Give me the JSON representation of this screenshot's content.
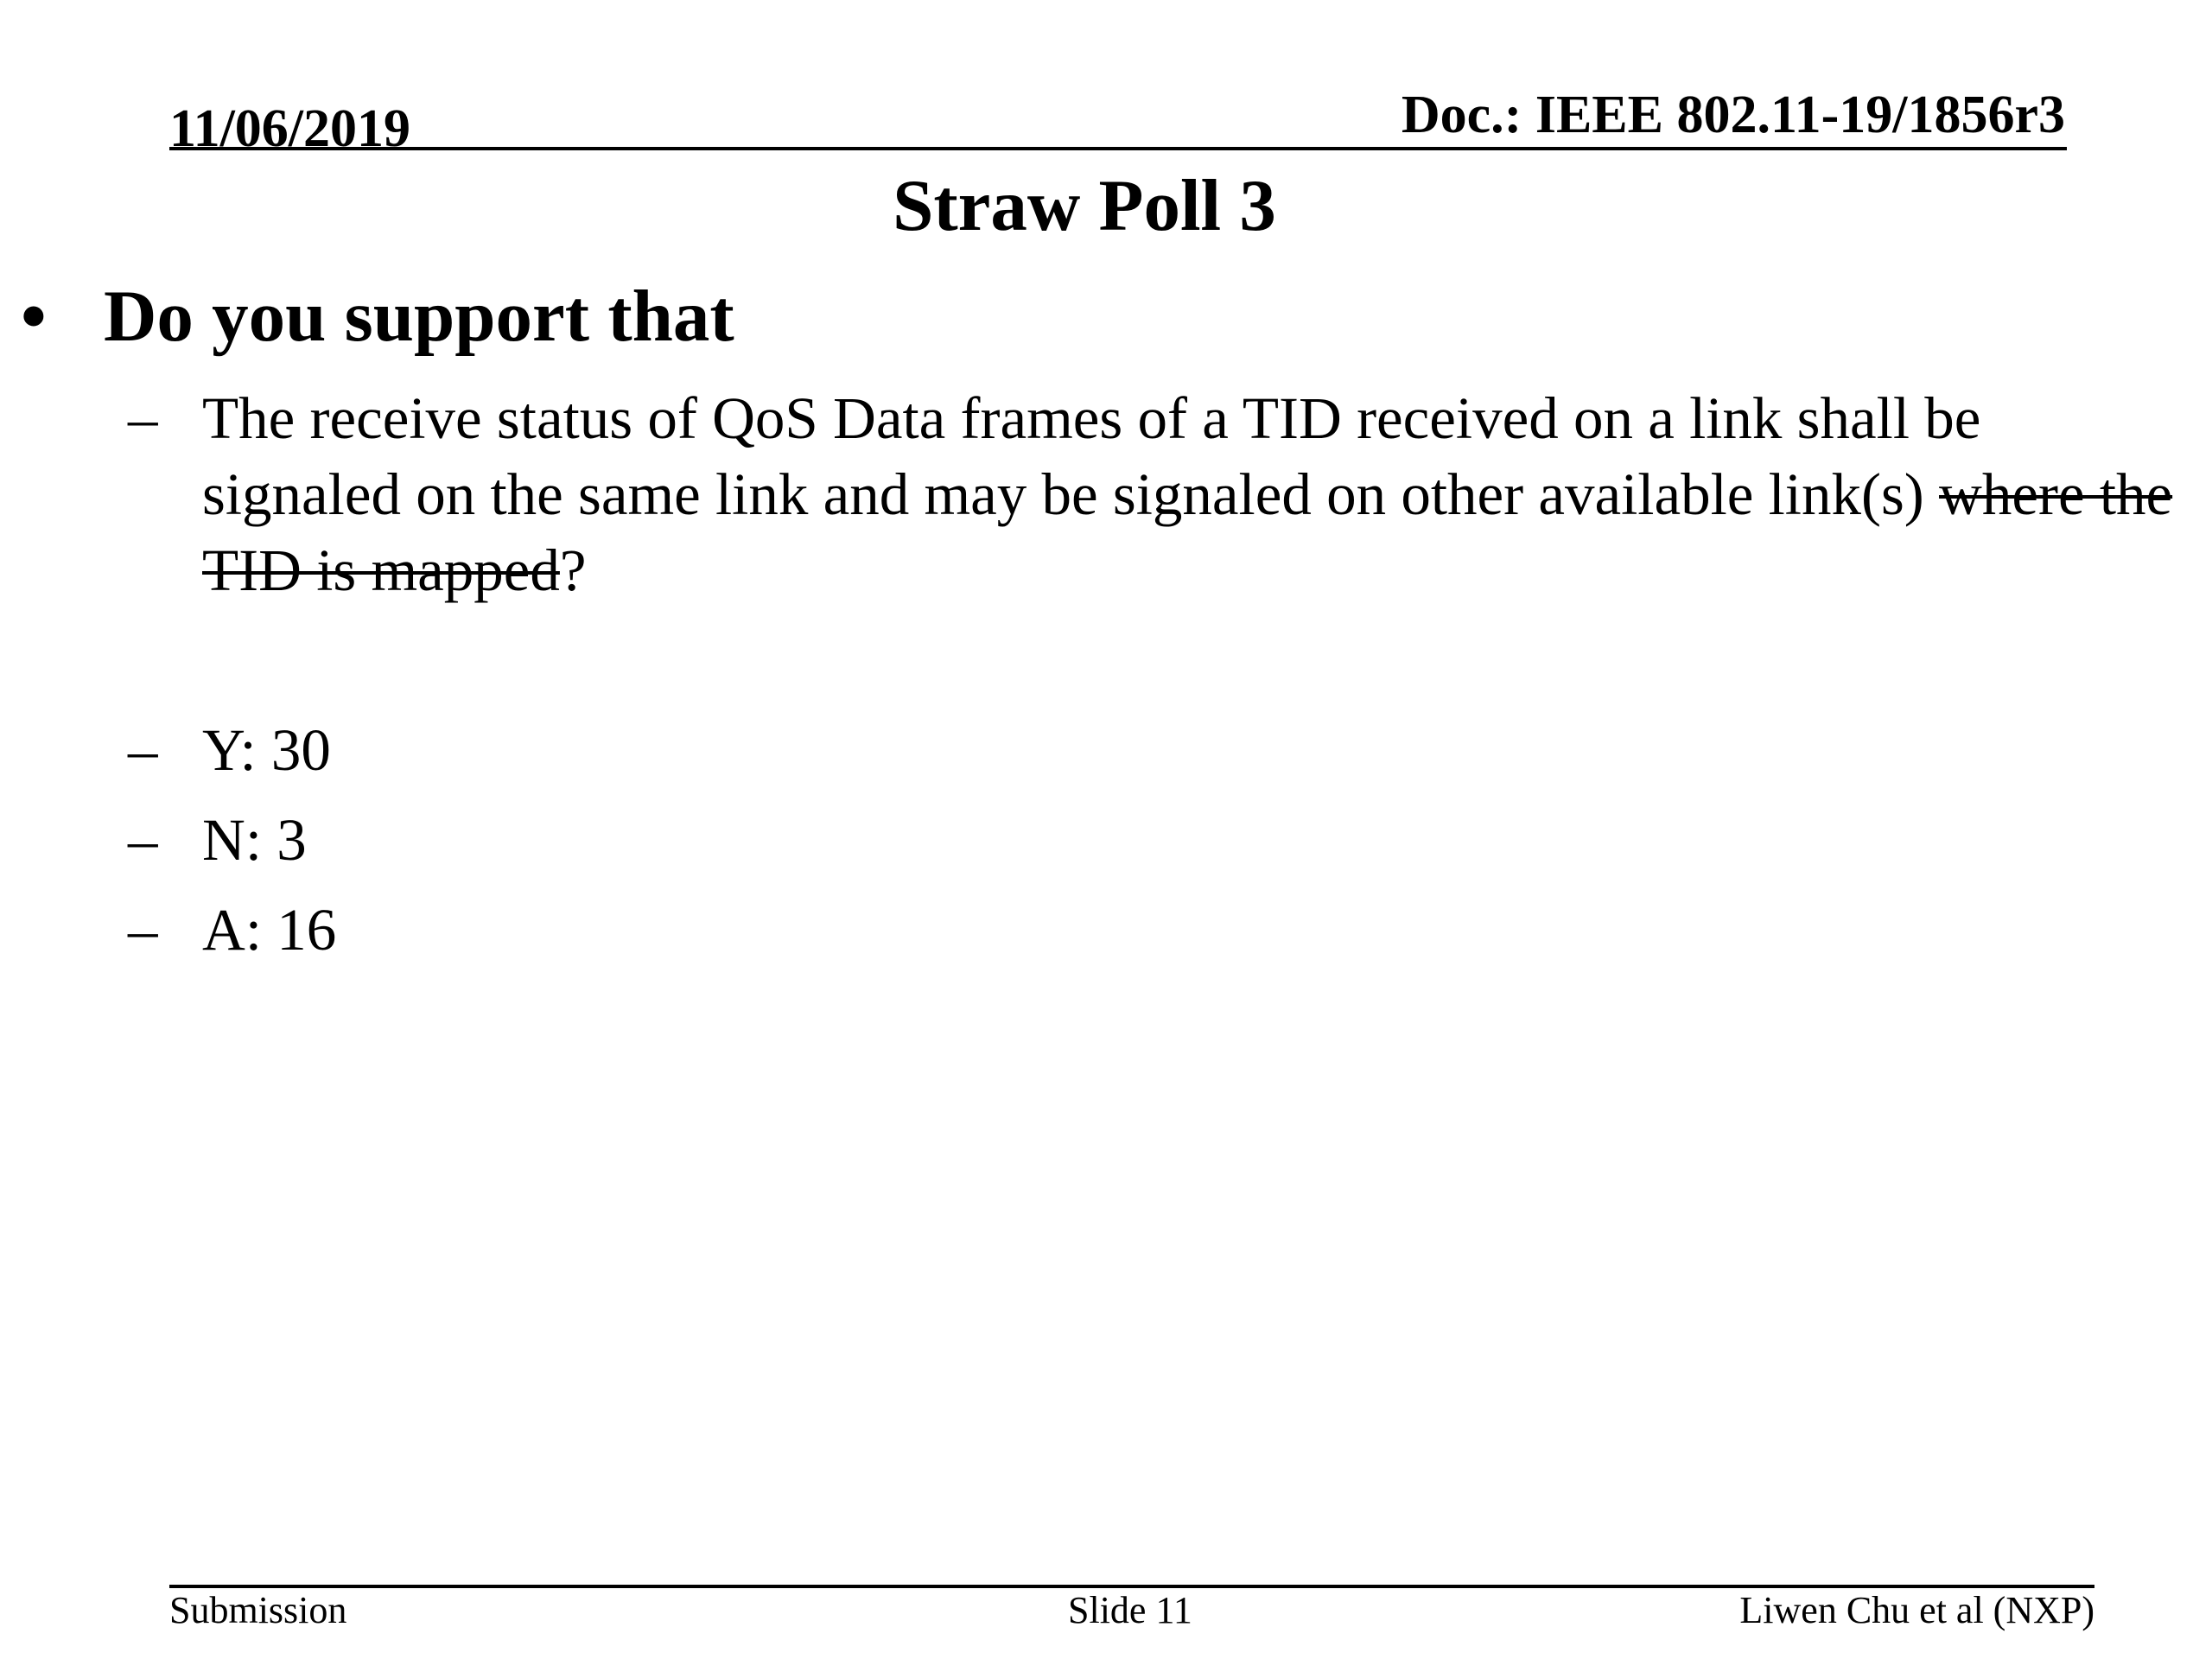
{
  "header": {
    "date": "11/06/2019",
    "doc_id": "Doc.: IEEE 802.11-19/1856r3"
  },
  "slide": {
    "title": "Straw Poll 3",
    "bullet": "Do you support that",
    "question": {
      "text": "The receive status of QoS Data frames of a TID received on a link shall be signaled on the same link and may be signaled on other available link(s) ",
      "struck": "where the TID is mapped",
      "end": "?"
    },
    "results": [
      {
        "label": "Y: 30"
      },
      {
        "label": "N: 3"
      },
      {
        "label": "A: 16"
      }
    ]
  },
  "footer": {
    "left": "Submission",
    "center": "Slide 11",
    "right": "Liwen Chu et al (NXP)"
  }
}
